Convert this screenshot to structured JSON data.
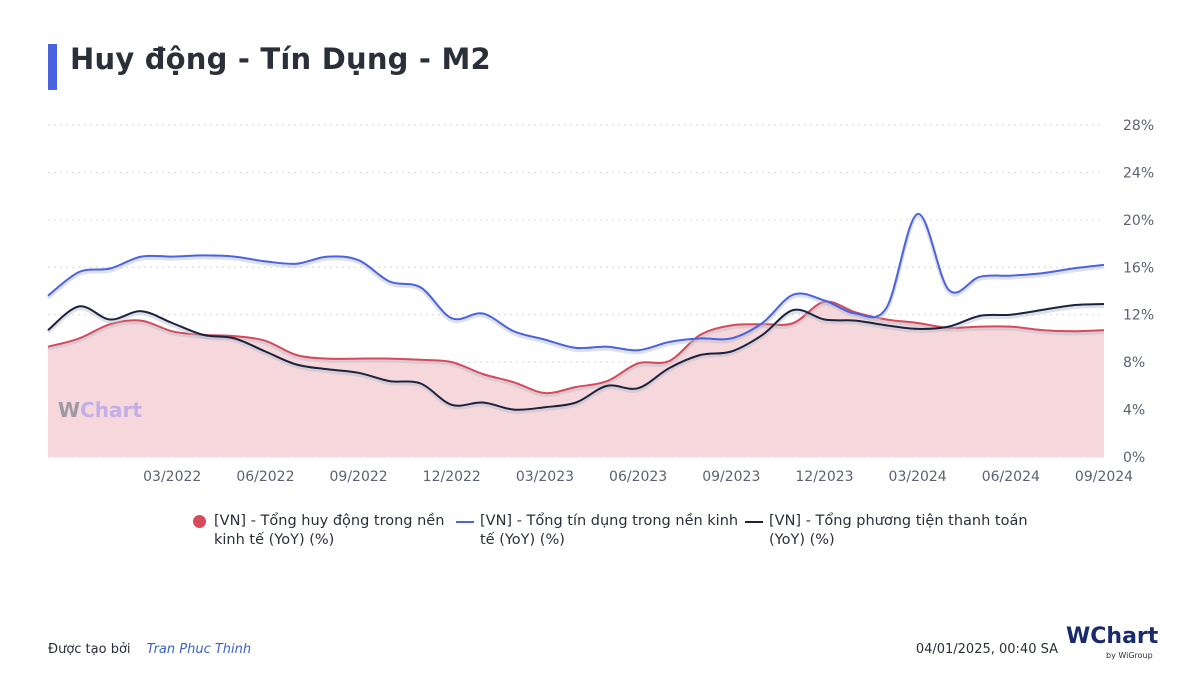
{
  "title": "Huy động - Tín Dụng - M2",
  "colors": {
    "accent": "#4a63e0",
    "deposits": "#d64a5c",
    "credit": "#4a63e0",
    "m2": "#1c2340",
    "area_fill": "#f6d7dc"
  },
  "chart_data": {
    "type": "line",
    "x": [
      "11/2021",
      "12/2021",
      "01/2022",
      "02/2022",
      "03/2022",
      "04/2022",
      "05/2022",
      "06/2022",
      "07/2022",
      "08/2022",
      "09/2022",
      "10/2022",
      "11/2022",
      "12/2022",
      "01/2023",
      "02/2023",
      "03/2023",
      "04/2023",
      "05/2023",
      "06/2023",
      "07/2023",
      "08/2023",
      "09/2023",
      "10/2023",
      "11/2023",
      "12/2023",
      "01/2024",
      "02/2024",
      "03/2024",
      "04/2024",
      "05/2024",
      "06/2024",
      "07/2024",
      "08/2024",
      "09/2024"
    ],
    "x_tick_labels": [
      "03/2022",
      "06/2022",
      "09/2022",
      "12/2022",
      "03/2023",
      "06/2023",
      "09/2023",
      "12/2023",
      "03/2024",
      "06/2024",
      "09/2024"
    ],
    "y_tick_labels": [
      "0%",
      "4%",
      "8%",
      "12%",
      "16%",
      "20%",
      "24%",
      "28%"
    ],
    "ylim": [
      0,
      28
    ],
    "y_axis_side": "right",
    "grid": true,
    "legend_position": "bottom",
    "series": [
      {
        "name": "[VN] - Tổng huy động trong nền kinh tế (YoY) (%)",
        "style": "area",
        "values": [
          9.3,
          10.0,
          11.2,
          11.5,
          10.6,
          10.3,
          10.2,
          9.8,
          8.6,
          8.3,
          8.3,
          8.3,
          8.2,
          8.0,
          7.0,
          6.3,
          5.4,
          5.9,
          6.4,
          7.9,
          8.1,
          10.3,
          11.1,
          11.2,
          11.3,
          13.1,
          12.2,
          11.6,
          11.3,
          10.9,
          11.0,
          11.0,
          10.7,
          10.6,
          10.7
        ]
      },
      {
        "name": "[VN] - Tổng tín dụng trong nền kinh tế (YoY) (%)",
        "style": "line",
        "values": [
          13.6,
          15.6,
          15.9,
          16.9,
          16.9,
          17.0,
          16.9,
          16.5,
          16.3,
          16.9,
          16.6,
          14.8,
          14.3,
          11.7,
          12.1,
          10.6,
          9.9,
          9.2,
          9.3,
          9.0,
          9.7,
          10.0,
          10.0,
          11.3,
          13.7,
          13.2,
          12.1,
          12.6,
          20.5,
          14.1,
          15.2,
          15.3,
          15.5,
          15.9,
          16.2
        ]
      },
      {
        "name": "[VN] - Tổng phương tiện thanh toán (YoY) (%)",
        "style": "line",
        "values": [
          10.7,
          12.7,
          11.6,
          12.3,
          11.3,
          10.3,
          10.0,
          8.9,
          7.8,
          7.4,
          7.1,
          6.4,
          6.2,
          4.4,
          4.6,
          4.0,
          4.2,
          4.6,
          6.0,
          5.8,
          7.5,
          8.6,
          8.9,
          10.3,
          12.4,
          11.6,
          11.5,
          11.1,
          10.8,
          11.0,
          11.9,
          12.0,
          12.4,
          12.8,
          12.9
        ]
      }
    ]
  },
  "legend": [
    {
      "line1": "[VN] - Tổng huy động trong nền",
      "line2": "kinh tế (YoY) (%)"
    },
    {
      "line1": "[VN] - Tổng tín dụng trong nền kinh",
      "line2": "tế (YoY) (%)"
    },
    {
      "line1": "[VN] - Tổng phương tiện thanh toán",
      "line2": "(YoY) (%)"
    }
  ],
  "watermark": {
    "w": "W",
    "text": "Chart"
  },
  "footer": {
    "created_by_label": "Được tạo bởi",
    "author": "Tran Phuc Thinh",
    "timestamp": "04/01/2025, 00:40 SA"
  },
  "logo": {
    "brand_w": "W",
    "brand_rest": "Chart",
    "by": "by WiGroup"
  }
}
